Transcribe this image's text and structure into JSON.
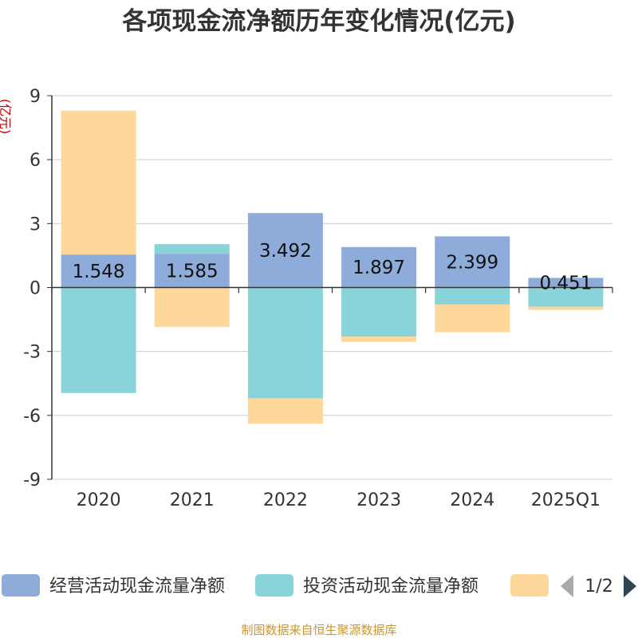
{
  "chart_data": {
    "type": "bar",
    "stacked": true,
    "title": "各项现金流净额历年变化情况(亿元)",
    "ylabel": "(亿元)",
    "xlabel": "",
    "categories": [
      "2020",
      "2021",
      "2022",
      "2023",
      "2024",
      "2025Q1"
    ],
    "ylim": [
      -9,
      9
    ],
    "yticks": [
      9,
      6,
      3,
      0,
      -3,
      -6,
      -9
    ],
    "grid": true,
    "series": [
      {
        "name": "经营活动现金流量净额",
        "color": "#8eacd9",
        "values": [
          1.548,
          1.585,
          3.492,
          1.897,
          2.399,
          0.451
        ],
        "show_labels": true
      },
      {
        "name": "投资活动现金流量净额",
        "color": "#88d4d8",
        "values": [
          -4.95,
          0.45,
          -5.2,
          -2.3,
          -0.8,
          -0.9
        ],
        "show_labels": false
      },
      {
        "name": "",
        "color": "#fdd89a",
        "values": [
          6.75,
          -1.85,
          -1.2,
          -0.25,
          -1.3,
          -0.15
        ],
        "show_labels": false
      }
    ],
    "legend": {
      "position": "bottom",
      "page": "1/2"
    },
    "source": "制图数据来自恒生聚源数据库"
  }
}
